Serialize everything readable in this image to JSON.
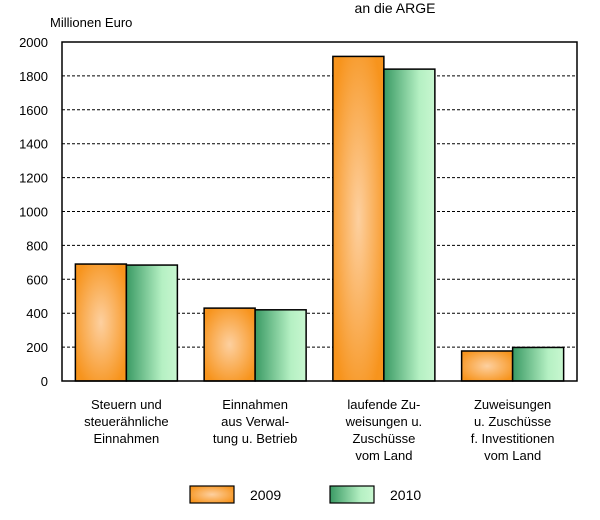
{
  "chart_data": {
    "type": "bar",
    "title": "an die ARGE",
    "ylabel": "Millionen Euro",
    "ylim": [
      0,
      2000
    ],
    "yticks": [
      0,
      200,
      400,
      600,
      800,
      1000,
      1200,
      1400,
      1600,
      1800,
      2000
    ],
    "grid": true,
    "legend_position": "bottom",
    "categories": [
      [
        "Steuern und",
        "steuerähnliche",
        "Einnahmen"
      ],
      [
        "Einnahmen",
        "aus Verwal-",
        "tung u. Betrieb"
      ],
      [
        "laufende Zu-",
        "weisungen u.",
        "Zuschüsse",
        "vom Land"
      ],
      [
        "Zuweisungen",
        "u. Zuschüsse",
        "f. Investitionen",
        "vom Land"
      ]
    ],
    "series": [
      {
        "name": "2009",
        "values": [
          690,
          430,
          1915,
          177
        ],
        "color": "#f7941d"
      },
      {
        "name": "2010",
        "values": [
          684,
          420,
          1840,
          198
        ],
        "color": "#3a9a64"
      }
    ]
  }
}
